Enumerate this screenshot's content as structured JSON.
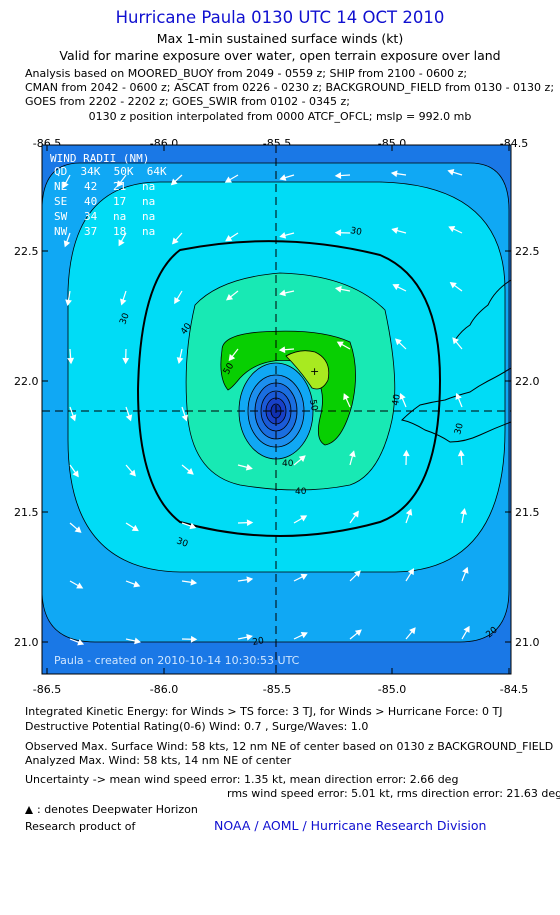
{
  "header": {
    "title": "Hurricane Paula 0130 UTC 14 OCT 2010",
    "subtitle": "Max 1-min sustained surface winds (kt)",
    "valid": "Valid for marine exposure over water, open terrain exposure over land"
  },
  "analysis_lines": [
    "Analysis based on MOORED_BUOY from 2049 - 0559 z; SHIP from 2100 - 0600 z;",
    "CMAN from 2042 - 0600 z; ASCAT from 0226 - 0230 z; BACKGROUND_FIELD from 0130 - 0130 z;",
    "GOES from 2202 - 2202 z; GOES_SWIR from 0102 - 0345 z;"
  ],
  "position_line": "0130 z position interpolated from 0000 ATCF_OFCL; mslp = 992.0 mb",
  "map": {
    "lon_ticks": [
      "-86.5",
      "-86.0",
      "-85.5",
      "-85.0",
      "-84.5"
    ],
    "lat_ticks": [
      "22.5",
      "22.0",
      "21.5",
      "21.0"
    ],
    "lon_range": [
      -86.5,
      -84.5
    ],
    "lat_range": [
      20.85,
      22.9
    ],
    "center": {
      "lon": -85.5,
      "lat": 21.88
    },
    "max_wind_location": {
      "lon": -85.32,
      "lat": 22.04
    },
    "contour_labels": [
      "30",
      "30",
      "30",
      "40",
      "40",
      "40",
      "50",
      "50",
      "40",
      "30",
      "20",
      "20"
    ],
    "credit": "Paula - created on 2010-10-14 10:30:53 UTC",
    "colors": {
      "background": "#1a78e6",
      "ring_20": "#10a8f4",
      "ring_30": "#00dcf6",
      "ring_40": "#18e9b4",
      "ring_50": "#08cf02",
      "ring_55": "#a8ea20",
      "eye_blue": "#1840c8"
    },
    "wind_radii": {
      "title": "WIND RADII (NM)",
      "header": "QD  34K  50K  64K",
      "rows": [
        {
          "q": "NE",
          "k34": "42",
          "k50": "21",
          "k64": "na"
        },
        {
          "q": "SE",
          "k34": "40",
          "k50": "17",
          "k64": "na"
        },
        {
          "q": "SW",
          "k34": "34",
          "k50": "na",
          "k64": "na"
        },
        {
          "q": "NW",
          "k34": "37",
          "k50": "18",
          "k64": "na"
        }
      ]
    }
  },
  "footer": {
    "ike_line": "Integrated Kinetic Energy:  for Winds > TS force: 3 TJ,  for Winds > Hurricane Force: 0 TJ",
    "dpr_line": "Destructive Potential Rating(0-6)   Wind: 0.7 , Surge/Waves: 1.0",
    "obs_line": "Observed Max. Surface Wind: 58 kts, 12 nm NE of center based on 0130 z BACKGROUND_FIELD",
    "analyzed_line": "Analyzed Max. Wind: 58 kts, 14 nm NE of center",
    "uncertainty_line1": "Uncertainty -> mean wind speed error: 1.35 kt,   mean direction error: 2.66 deg",
    "uncertainty_line2": "rms wind speed error: 5.01 kt,   rms direction error: 21.63 deg",
    "deepwater_label": ": denotes Deepwater Horizon",
    "research_label": "Research product of",
    "noaa_label": "NOAA / AOML / Hurricane Research Division"
  }
}
